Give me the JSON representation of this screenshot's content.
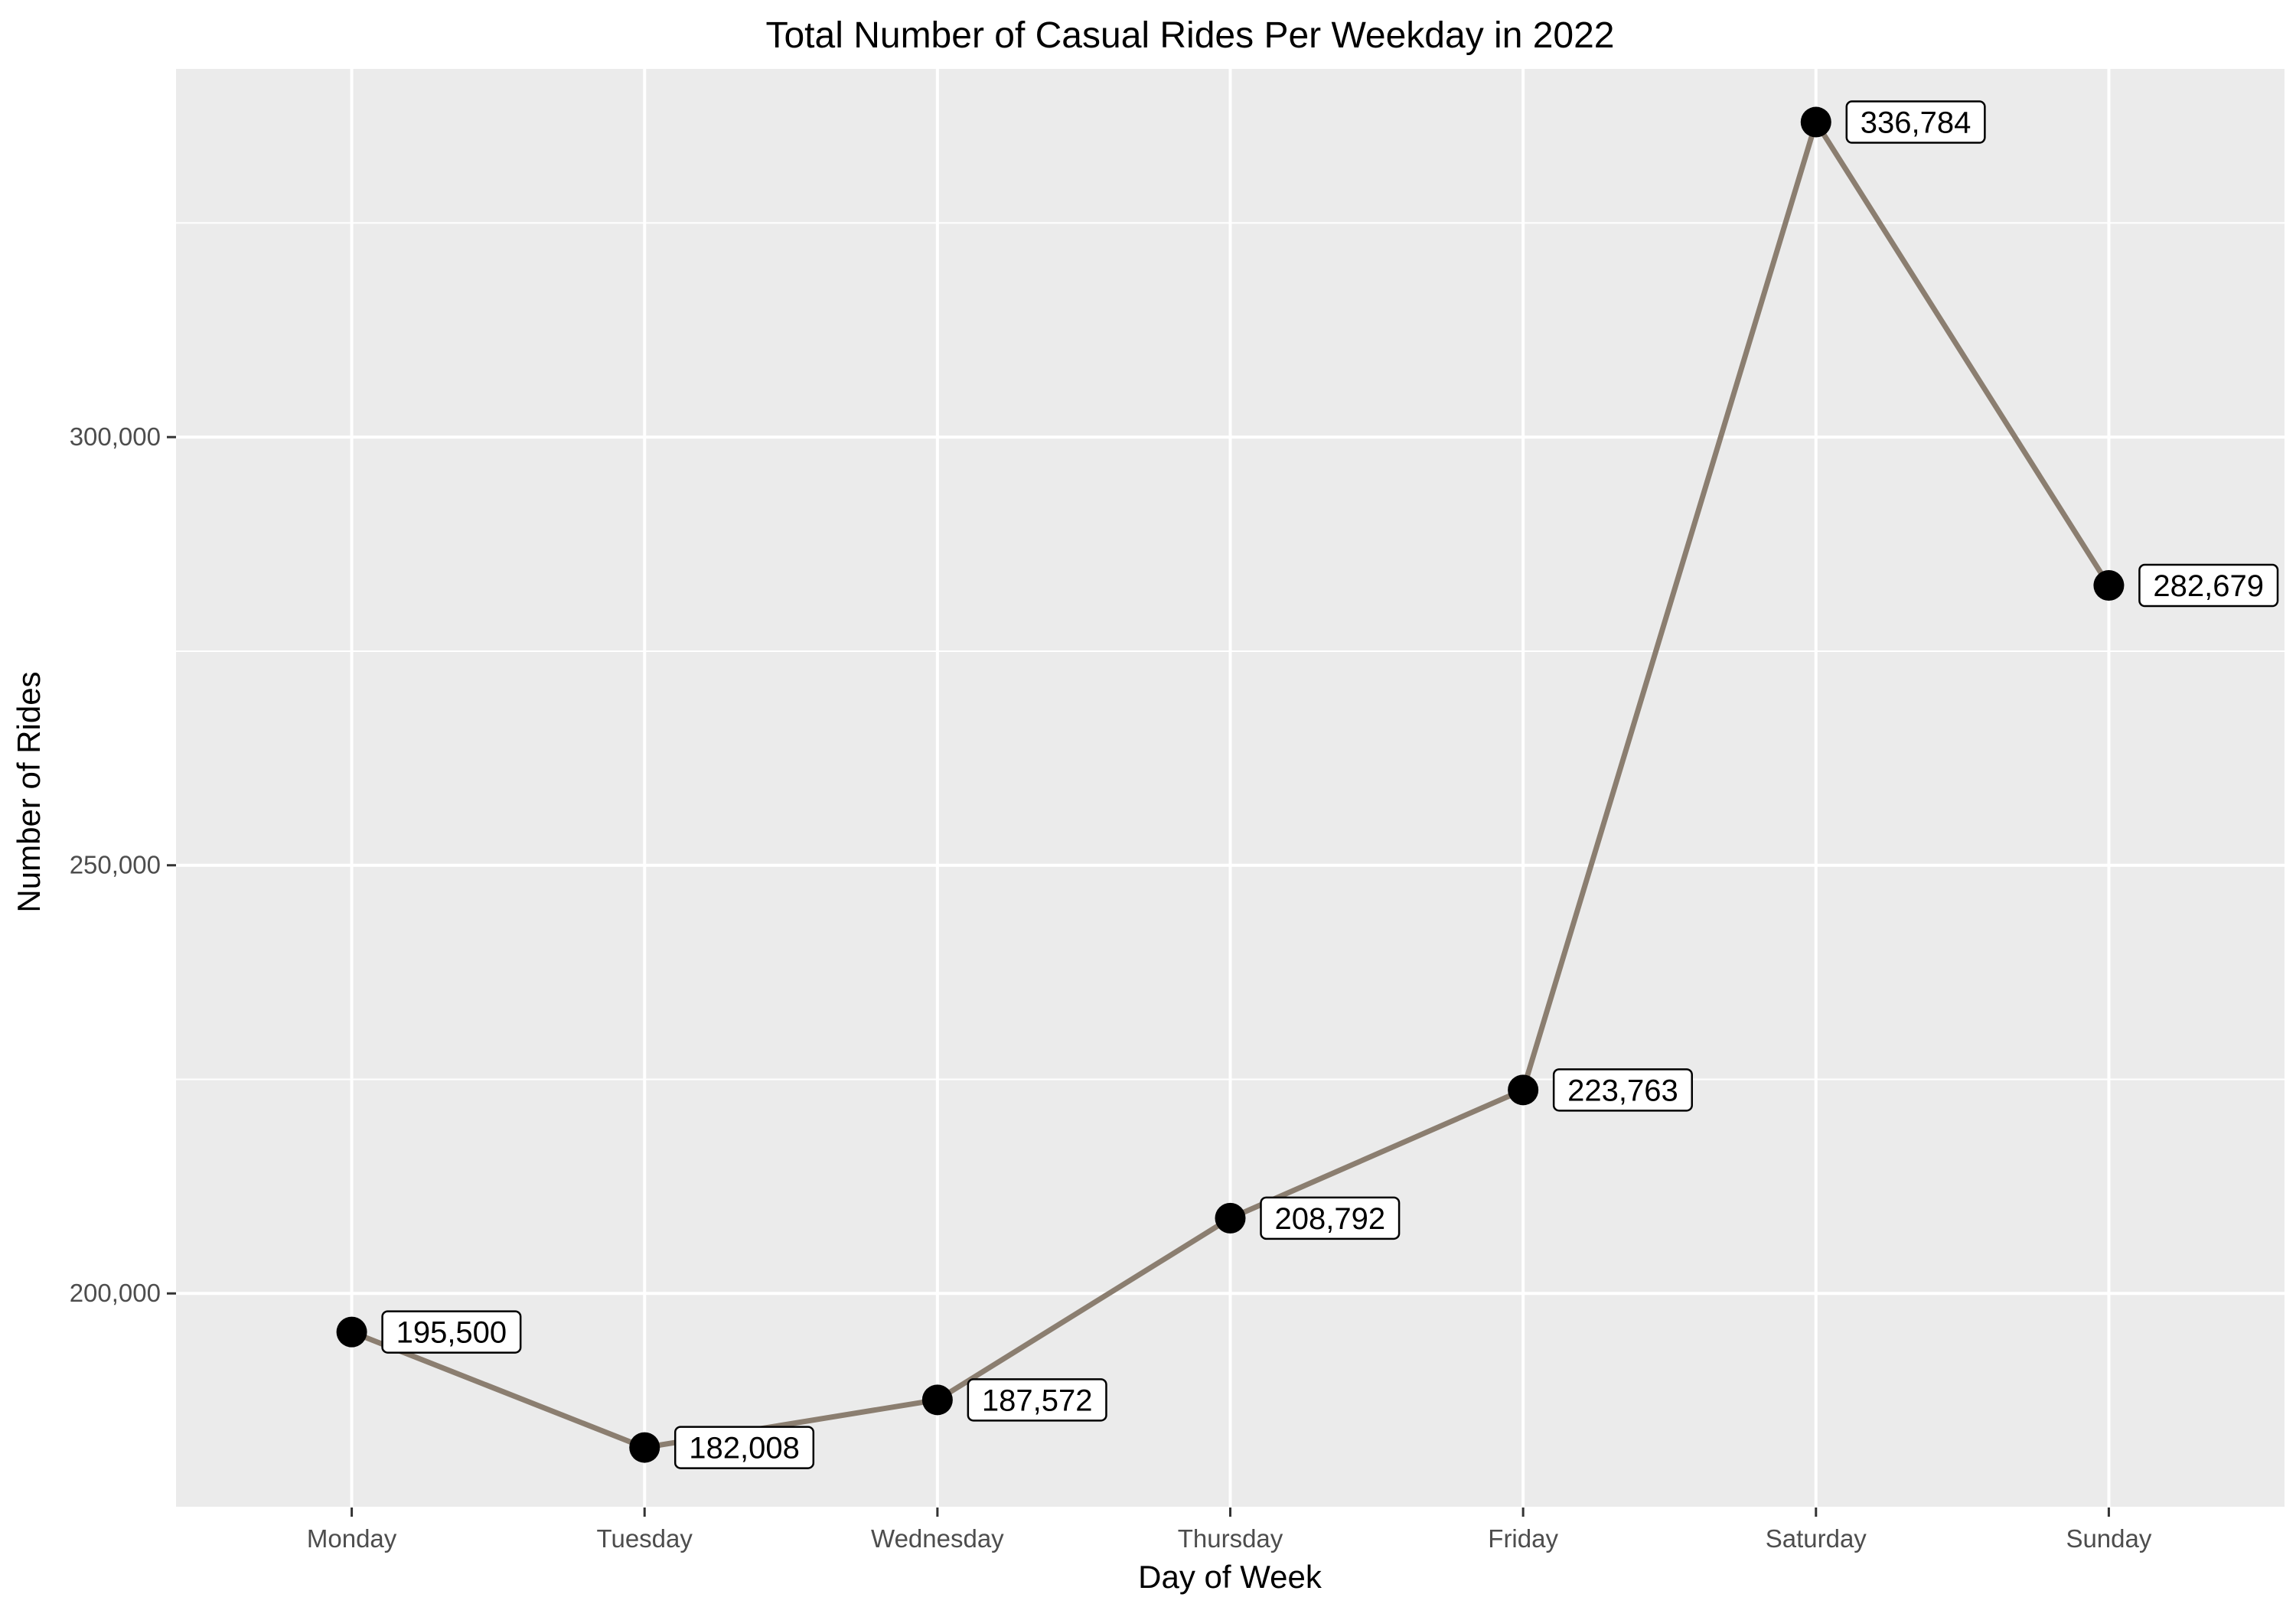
{
  "colors": {
    "panel": "#ebebeb",
    "grid": "#ffffff",
    "line": "#8b7e70",
    "point": "#000000",
    "label_border": "#000000",
    "label_fill": "#ffffff"
  },
  "chart_data": {
    "type": "line",
    "title": "Total Number of Casual Rides Per Weekday in 2022",
    "xlabel": "Day of Week",
    "ylabel": "Number of Rides",
    "categories": [
      "Monday",
      "Tuesday",
      "Wednesday",
      "Thursday",
      "Friday",
      "Saturday",
      "Sunday"
    ],
    "values": [
      195500,
      182008,
      187572,
      208792,
      223763,
      336784,
      282679
    ],
    "data_labels": [
      "195,500",
      "182,008",
      "187,572",
      "208,792",
      "223,763",
      "336,784",
      "282,679"
    ],
    "yticks": [
      200000,
      250000,
      300000
    ],
    "ytick_labels": [
      "200,000",
      "250,000",
      "300,000"
    ],
    "ylim": [
      175000,
      343000
    ],
    "grid": true,
    "legend": "none"
  }
}
